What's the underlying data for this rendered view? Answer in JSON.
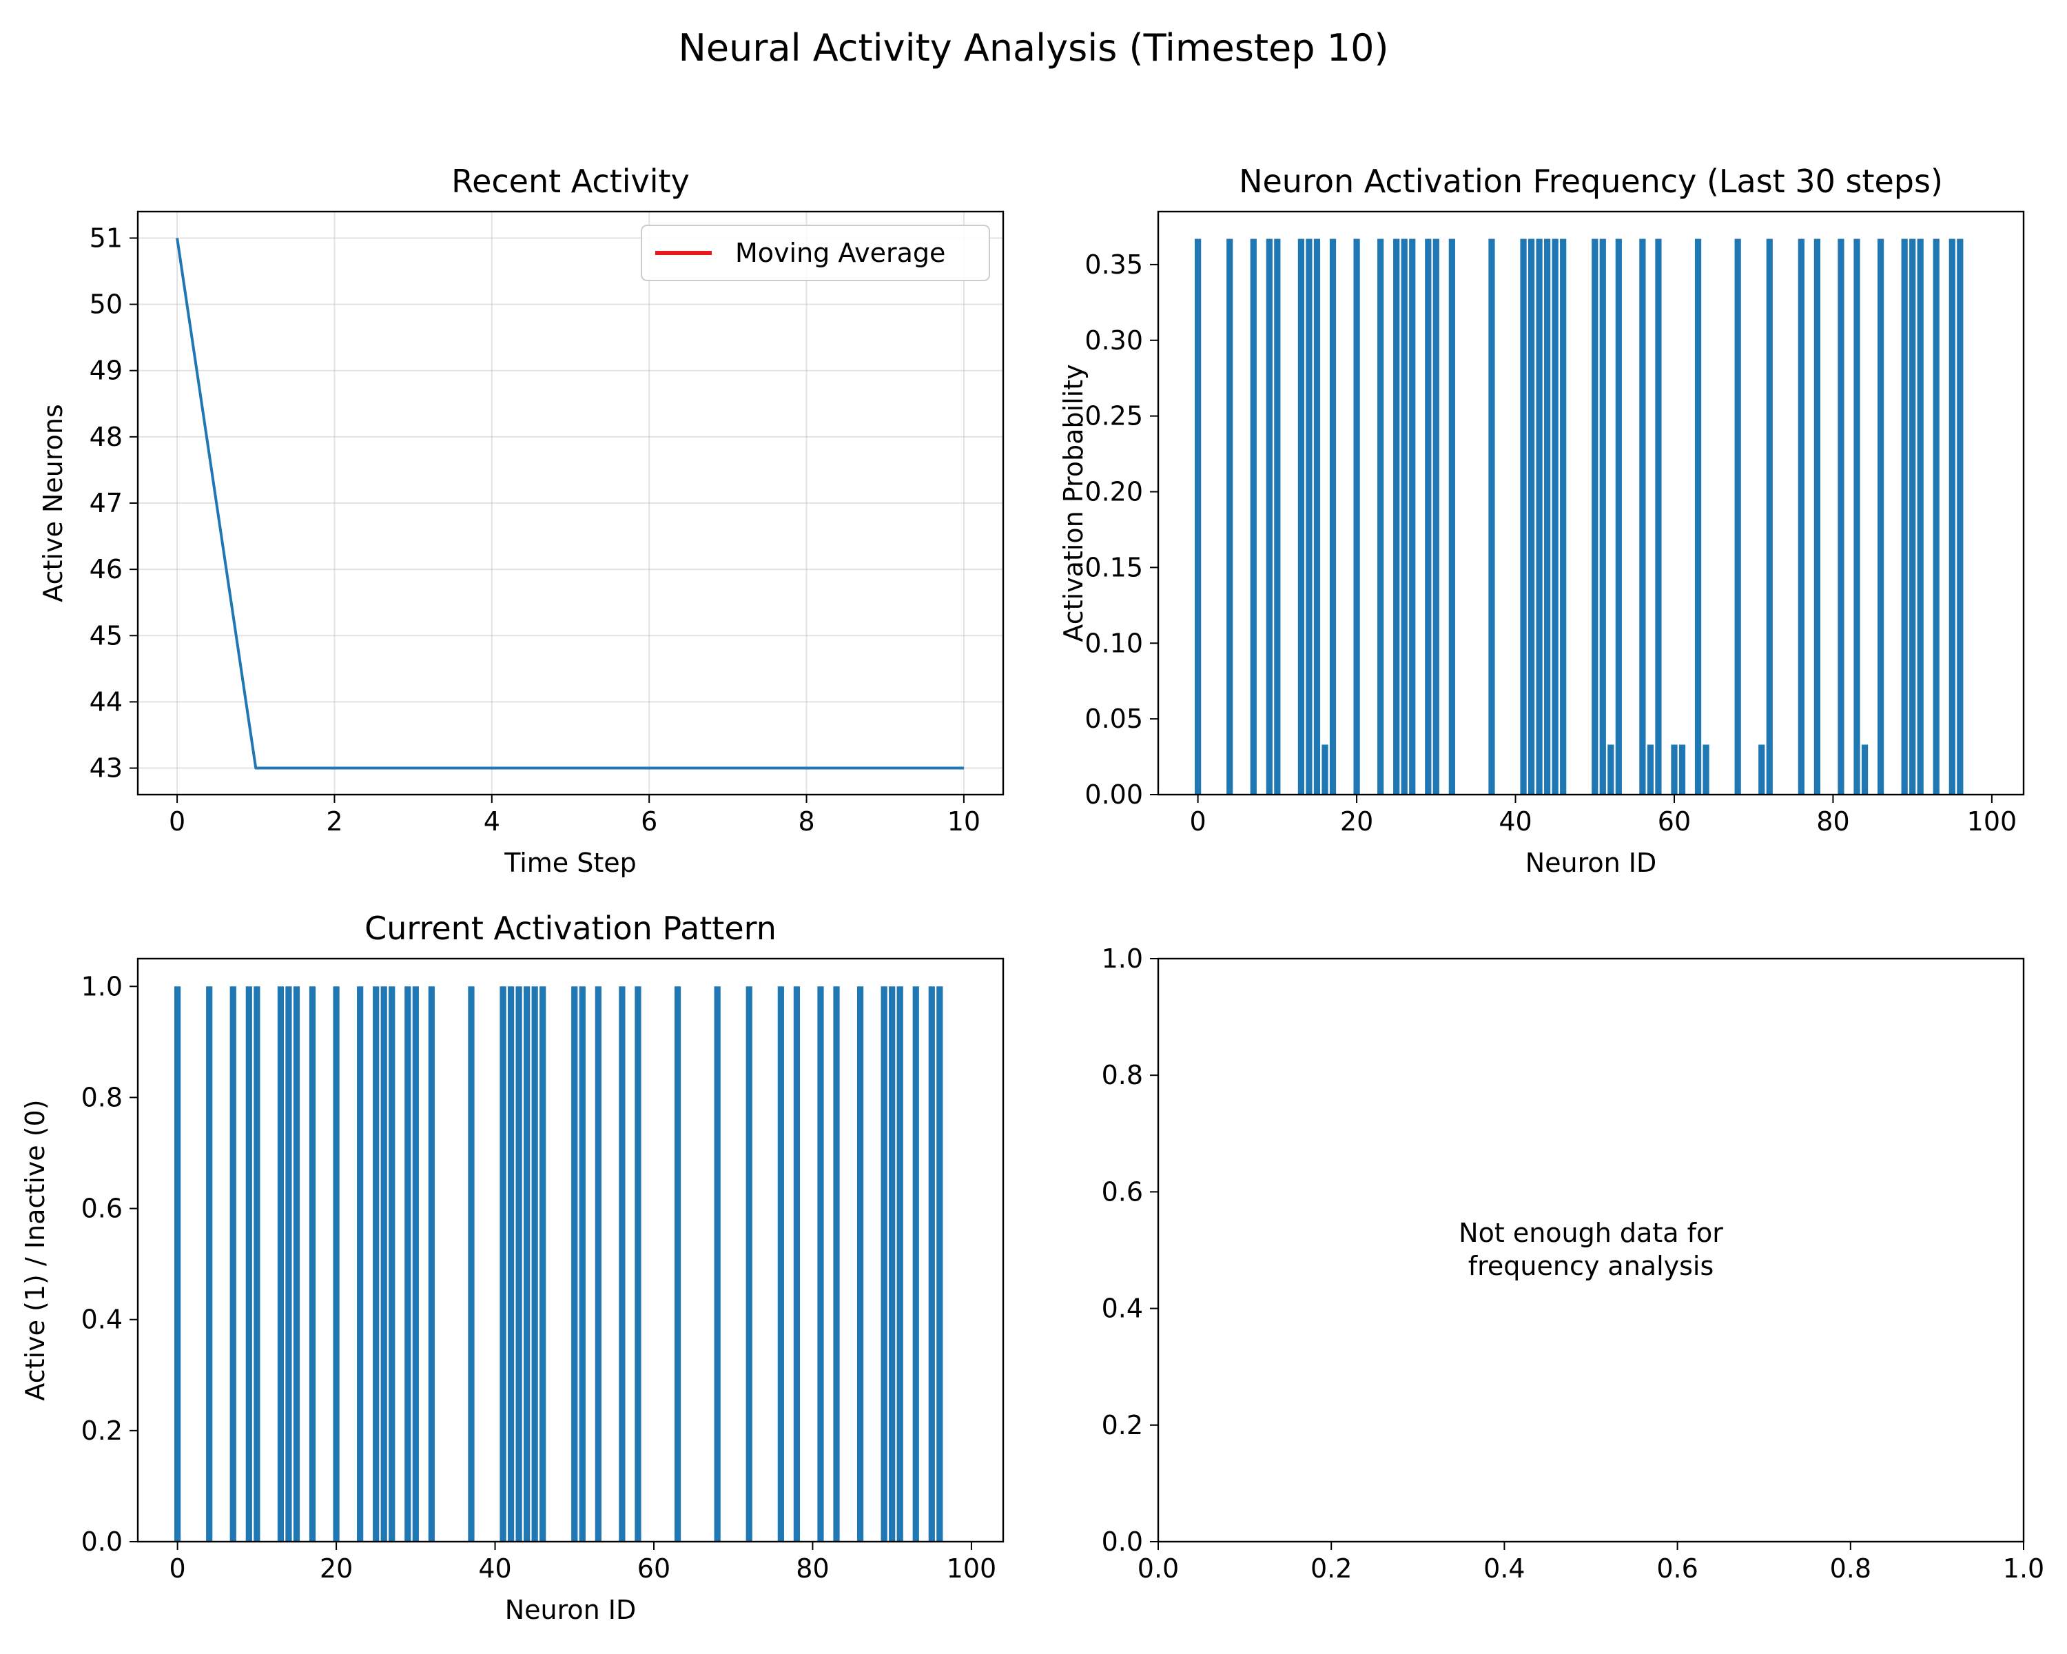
{
  "figure": {
    "title": "Neural Activity Analysis (Timestep 10)"
  },
  "chart_data": [
    {
      "type": "line",
      "title": "Recent Activity",
      "xlabel": "Time Step",
      "ylabel": "Active Neurons",
      "xlim": [
        -0.5,
        10.5
      ],
      "ylim": [
        42.6,
        51.4
      ],
      "xticks": [
        0,
        2,
        4,
        6,
        8,
        10
      ],
      "yticks": [
        43,
        44,
        45,
        46,
        47,
        48,
        49,
        50,
        51
      ],
      "grid": true,
      "legend": {
        "placement": "upper right",
        "entries": [
          "Moving Average"
        ]
      },
      "series": [
        {
          "x": [
            0,
            1,
            2,
            3,
            4,
            5,
            6,
            7,
            8,
            9,
            10
          ],
          "values": [
            51,
            43,
            43,
            43,
            43,
            43,
            43,
            43,
            43,
            43,
            43
          ],
          "color": "#1f77b4"
        },
        {
          "name": "Moving Average",
          "x": [],
          "values": [],
          "color": "#e41a1c"
        }
      ]
    },
    {
      "type": "bar",
      "title": "Neuron Activation Frequency (Last 30 steps)",
      "xlabel": "Neuron ID",
      "ylabel": "Activation Probability",
      "xlim": [
        -5,
        104
      ],
      "ylim": [
        0,
        0.385
      ],
      "xticks": [
        0,
        20,
        40,
        60,
        80,
        100
      ],
      "yticks": [
        "0.00",
        "0.05",
        "0.10",
        "0.15",
        "0.20",
        "0.25",
        "0.30",
        "0.35"
      ],
      "grid": false,
      "bar_color": "#1f77b4",
      "bars": [
        {
          "x": 0,
          "y": 0.367
        },
        {
          "x": 4,
          "y": 0.367
        },
        {
          "x": 7,
          "y": 0.367
        },
        {
          "x": 9,
          "y": 0.367
        },
        {
          "x": 10,
          "y": 0.367
        },
        {
          "x": 13,
          "y": 0.367
        },
        {
          "x": 14,
          "y": 0.367
        },
        {
          "x": 15,
          "y": 0.367
        },
        {
          "x": 16,
          "y": 0.033
        },
        {
          "x": 17,
          "y": 0.367
        },
        {
          "x": 20,
          "y": 0.367
        },
        {
          "x": 23,
          "y": 0.367
        },
        {
          "x": 25,
          "y": 0.367
        },
        {
          "x": 26,
          "y": 0.367
        },
        {
          "x": 27,
          "y": 0.367
        },
        {
          "x": 29,
          "y": 0.367
        },
        {
          "x": 30,
          "y": 0.367
        },
        {
          "x": 32,
          "y": 0.367
        },
        {
          "x": 37,
          "y": 0.367
        },
        {
          "x": 41,
          "y": 0.367
        },
        {
          "x": 42,
          "y": 0.367
        },
        {
          "x": 43,
          "y": 0.367
        },
        {
          "x": 44,
          "y": 0.367
        },
        {
          "x": 45,
          "y": 0.367
        },
        {
          "x": 46,
          "y": 0.367
        },
        {
          "x": 50,
          "y": 0.367
        },
        {
          "x": 51,
          "y": 0.367
        },
        {
          "x": 52,
          "y": 0.033
        },
        {
          "x": 53,
          "y": 0.367
        },
        {
          "x": 56,
          "y": 0.367
        },
        {
          "x": 57,
          "y": 0.033
        },
        {
          "x": 58,
          "y": 0.367
        },
        {
          "x": 60,
          "y": 0.033
        },
        {
          "x": 61,
          "y": 0.033
        },
        {
          "x": 63,
          "y": 0.367
        },
        {
          "x": 64,
          "y": 0.033
        },
        {
          "x": 68,
          "y": 0.367
        },
        {
          "x": 71,
          "y": 0.033
        },
        {
          "x": 72,
          "y": 0.367
        },
        {
          "x": 76,
          "y": 0.367
        },
        {
          "x": 78,
          "y": 0.367
        },
        {
          "x": 81,
          "y": 0.367
        },
        {
          "x": 83,
          "y": 0.367
        },
        {
          "x": 84,
          "y": 0.033
        },
        {
          "x": 86,
          "y": 0.367
        },
        {
          "x": 89,
          "y": 0.367
        },
        {
          "x": 90,
          "y": 0.367
        },
        {
          "x": 91,
          "y": 0.367
        },
        {
          "x": 93,
          "y": 0.367
        },
        {
          "x": 95,
          "y": 0.367
        },
        {
          "x": 96,
          "y": 0.367
        }
      ]
    },
    {
      "type": "bar",
      "title": "Current Activation Pattern",
      "xlabel": "Neuron ID",
      "ylabel": "Active (1) / Inactive (0)",
      "xlim": [
        -5,
        104
      ],
      "ylim": [
        0,
        1.05
      ],
      "xticks": [
        0,
        20,
        40,
        60,
        80,
        100
      ],
      "yticks": [
        "0.0",
        "0.2",
        "0.4",
        "0.6",
        "0.8",
        "1.0"
      ],
      "grid": false,
      "bar_color": "#1f77b4",
      "bars": [
        {
          "x": 0,
          "y": 1
        },
        {
          "x": 4,
          "y": 1
        },
        {
          "x": 7,
          "y": 1
        },
        {
          "x": 9,
          "y": 1
        },
        {
          "x": 10,
          "y": 1
        },
        {
          "x": 13,
          "y": 1
        },
        {
          "x": 14,
          "y": 1
        },
        {
          "x": 15,
          "y": 1
        },
        {
          "x": 17,
          "y": 1
        },
        {
          "x": 20,
          "y": 1
        },
        {
          "x": 23,
          "y": 1
        },
        {
          "x": 25,
          "y": 1
        },
        {
          "x": 26,
          "y": 1
        },
        {
          "x": 27,
          "y": 1
        },
        {
          "x": 29,
          "y": 1
        },
        {
          "x": 30,
          "y": 1
        },
        {
          "x": 32,
          "y": 1
        },
        {
          "x": 37,
          "y": 1
        },
        {
          "x": 41,
          "y": 1
        },
        {
          "x": 42,
          "y": 1
        },
        {
          "x": 43,
          "y": 1
        },
        {
          "x": 44,
          "y": 1
        },
        {
          "x": 45,
          "y": 1
        },
        {
          "x": 46,
          "y": 1
        },
        {
          "x": 50,
          "y": 1
        },
        {
          "x": 51,
          "y": 1
        },
        {
          "x": 53,
          "y": 1
        },
        {
          "x": 56,
          "y": 1
        },
        {
          "x": 58,
          "y": 1
        },
        {
          "x": 63,
          "y": 1
        },
        {
          "x": 68,
          "y": 1
        },
        {
          "x": 72,
          "y": 1
        },
        {
          "x": 76,
          "y": 1
        },
        {
          "x": 78,
          "y": 1
        },
        {
          "x": 81,
          "y": 1
        },
        {
          "x": 83,
          "y": 1
        },
        {
          "x": 86,
          "y": 1
        },
        {
          "x": 89,
          "y": 1
        },
        {
          "x": 90,
          "y": 1
        },
        {
          "x": 91,
          "y": 1
        },
        {
          "x": 93,
          "y": 1
        },
        {
          "x": 95,
          "y": 1
        },
        {
          "x": 96,
          "y": 1
        }
      ]
    },
    {
      "type": "scatter",
      "title": "",
      "xlabel": "",
      "ylabel": "",
      "xlim": [
        0,
        1
      ],
      "ylim": [
        0,
        1
      ],
      "xticks": [
        "0.0",
        "0.2",
        "0.4",
        "0.6",
        "0.8",
        "1.0"
      ],
      "yticks": [
        "0.0",
        "0.2",
        "0.4",
        "0.6",
        "0.8",
        "1.0"
      ],
      "grid": false,
      "annotation": {
        "lines": [
          "Not enough data for",
          "frequency analysis"
        ]
      }
    }
  ]
}
